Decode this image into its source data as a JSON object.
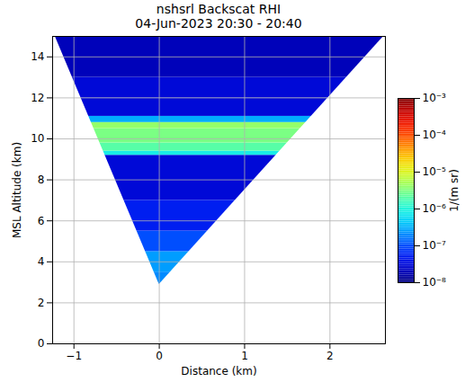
{
  "chart_data": {
    "type": "heatmap",
    "title": "nshsrl Backscat RHI",
    "subtitle": "04-Jun-2023 20:30 - 20:40",
    "x_label": "Distance (km)",
    "y_label": "MSL Altitude (km)",
    "xlim": [
      -1.25,
      2.65
    ],
    "xticks": [
      {
        "value": -1,
        "label": "−1"
      },
      0,
      1,
      2
    ],
    "ylim": [
      0,
      15
    ],
    "yticks": [
      0,
      2,
      4,
      6,
      8,
      10,
      12,
      14
    ],
    "grid": true,
    "scan_sector": {
      "apex": [
        0,
        2.9
      ],
      "left": [
        -1.22,
        15
      ],
      "right": [
        2.63,
        15
      ]
    },
    "layers": {
      "altitude_bottom": [
        2.9,
        3.5,
        4.5,
        5.5,
        7.0,
        9.2,
        9.4,
        9.8,
        10.5,
        10.8,
        11.1,
        12.0,
        13.0
      ],
      "altitude_top": [
        3.5,
        4.5,
        5.5,
        7.0,
        9.2,
        9.4,
        9.8,
        10.5,
        10.8,
        11.1,
        12.0,
        13.0,
        15.0
      ],
      "backscatter": [
        2e-07,
        2.5e-07,
        1e-07,
        5e-08,
        3e-08,
        8e-07,
        2e-06,
        3e-06,
        4e-06,
        3e-07,
        3e-08,
        3e-08,
        2e-08
      ]
    },
    "colorbar": {
      "label": "1/(m sr)",
      "log": true,
      "lim": [
        1e-08,
        0.001
      ],
      "ticks": [
        {
          "value": 1e-08,
          "label": "10⁻⁸"
        },
        {
          "value": 1e-07,
          "label": "10⁻⁷"
        },
        {
          "value": 1e-06,
          "label": "10⁻⁶"
        },
        {
          "value": 1e-05,
          "label": "10⁻⁵"
        },
        {
          "value": 0.0001,
          "label": "10⁻⁴"
        },
        {
          "value": 0.001,
          "label": "10⁻³"
        }
      ]
    }
  }
}
